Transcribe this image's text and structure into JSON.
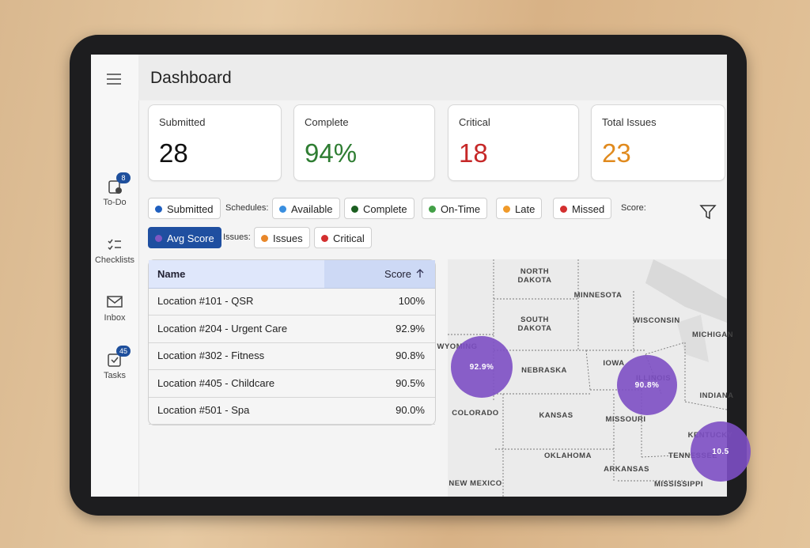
{
  "sidebar": {
    "items": [
      {
        "label": "To-Do",
        "badge": "8"
      },
      {
        "label": "Checklists"
      },
      {
        "label": "Inbox"
      },
      {
        "label": "Tasks",
        "badge": "45"
      }
    ]
  },
  "header": {
    "title": "Dashboard"
  },
  "cards": [
    {
      "label": "Submitted",
      "value": "28"
    },
    {
      "label": "Complete",
      "value": "94%"
    },
    {
      "label": "Critical",
      "value": "18"
    },
    {
      "label": "Total Issues",
      "value": "23"
    }
  ],
  "filters": {
    "submitted": "Submitted",
    "schedules_label": "Schedules:",
    "schedules": [
      "Available",
      "Complete",
      "On-Time",
      "Late",
      "Missed"
    ],
    "score_label": "Score:",
    "score": [
      "Avg Score"
    ],
    "issues_label": "Issues:",
    "issues": [
      "Issues",
      "Critical"
    ]
  },
  "table": {
    "columns": [
      "Name",
      "Score"
    ],
    "rows": [
      [
        "Location #101 - QSR",
        "100%"
      ],
      [
        "Location #204 - Urgent Care",
        "92.9%"
      ],
      [
        "Location #302 - Fitness",
        "90.8%"
      ],
      [
        "Location #405 - Childcare",
        "90.5%"
      ],
      [
        "Location #501 - Spa",
        "90.0%"
      ]
    ]
  },
  "map": {
    "labels": [
      "NORTH",
      "DAKOTA",
      "MINNESOTA",
      "SOUTH",
      "DAKOTA",
      "WISCONSIN",
      "MICHIGAN",
      "WYOMING",
      "NEBRASKA",
      "IOWA",
      "ILLINOIS",
      "INDIANA",
      "COLORADO",
      "KANSAS",
      "MISSOURI",
      "KENTUCKY",
      "TENNESSEE",
      "OKLAHOMA",
      "ARKANSAS",
      "MISSISSIPPI",
      "NEW MEXICO"
    ],
    "bubbles": [
      "92.9%",
      "90.8%",
      "10.5"
    ]
  }
}
